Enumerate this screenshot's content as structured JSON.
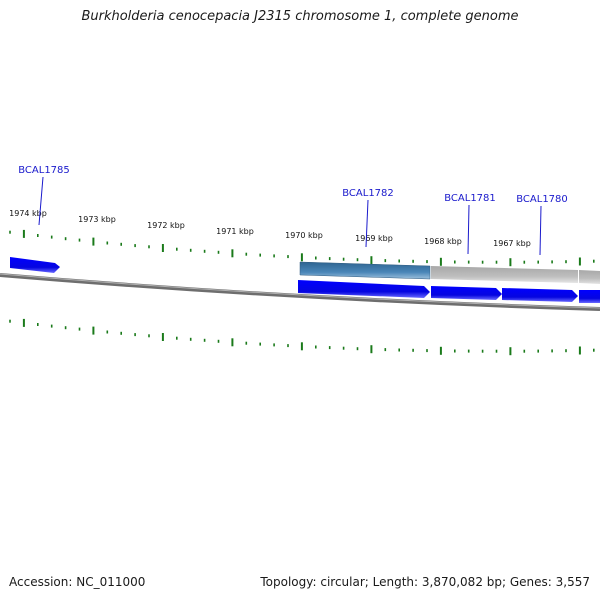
{
  "title": "Burkholderia cenocepacia J2315 chromosome 1, complete genome",
  "footer": {
    "accession": "Accession: NC_011000",
    "summary": "Topology: circular; Length: 3,870,082 bp; Genes: 3,557"
  },
  "colors": {
    "backbone": "#8a8a8a",
    "tick": "#1a7a1a",
    "gene_forward": "#0a0ae6",
    "gene_highlight": "#4a86b8",
    "gene_grey": "#b8b8b8",
    "label": "#1a1acc"
  },
  "tick_labels": [
    {
      "text": "1974 kbp"
    },
    {
      "text": "1973 kbp"
    },
    {
      "text": "1972 kbp"
    },
    {
      "text": "1971 kbp"
    },
    {
      "text": "1970 kbp"
    },
    {
      "text": "1969 kbp"
    },
    {
      "text": "1968 kbp"
    },
    {
      "text": "1967 kbp"
    }
  ],
  "genes": [
    {
      "name": "BCAL1785"
    },
    {
      "name": "BCAL1782"
    },
    {
      "name": "BCAL1781"
    },
    {
      "name": "BCAL1780"
    }
  ]
}
